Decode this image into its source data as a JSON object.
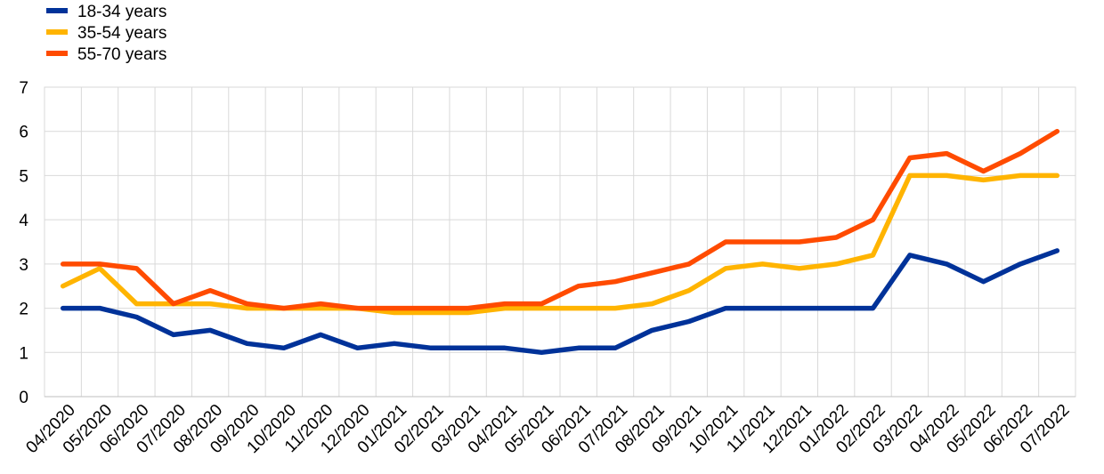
{
  "chart_data": {
    "type": "line",
    "categories": [
      "04/2020",
      "05/2020",
      "06/2020",
      "07/2020",
      "08/2020",
      "09/2020",
      "10/2020",
      "11/2020",
      "12/2020",
      "01/2021",
      "02/2021",
      "03/2021",
      "04/2021",
      "05/2021",
      "06/2021",
      "07/2021",
      "08/2021",
      "09/2021",
      "10/2021",
      "11/2021",
      "12/2021",
      "01/2022",
      "02/2022",
      "03/2022",
      "04/2022",
      "05/2022",
      "06/2022",
      "07/2022"
    ],
    "series": [
      {
        "name": "18-34 years",
        "color": "#003299",
        "values": [
          2.0,
          2.0,
          1.8,
          1.4,
          1.5,
          1.2,
          1.1,
          1.4,
          1.1,
          1.2,
          1.1,
          1.1,
          1.1,
          1.0,
          1.1,
          1.1,
          1.5,
          1.7,
          2.0,
          2.0,
          2.0,
          2.0,
          2.0,
          3.2,
          3.0,
          2.6,
          3.0,
          3.3
        ]
      },
      {
        "name": "35-54 years",
        "color": "#FFB400",
        "values": [
          2.5,
          2.9,
          2.1,
          2.1,
          2.1,
          2.0,
          2.0,
          2.0,
          2.0,
          1.9,
          1.9,
          1.9,
          2.0,
          2.0,
          2.0,
          2.0,
          2.1,
          2.4,
          2.9,
          3.0,
          2.9,
          3.0,
          3.2,
          5.0,
          5.0,
          4.9,
          5.0,
          5.0
        ]
      },
      {
        "name": "55-70 years",
        "color": "#FF4B00",
        "values": [
          3.0,
          3.0,
          2.9,
          2.1,
          2.4,
          2.1,
          2.0,
          2.1,
          2.0,
          2.0,
          2.0,
          2.0,
          2.1,
          2.1,
          2.5,
          2.6,
          2.8,
          3.0,
          3.5,
          3.5,
          3.5,
          3.6,
          4.0,
          5.4,
          5.5,
          5.1,
          5.5,
          6.0
        ]
      }
    ],
    "yticks": [
      "0",
      "1",
      "2",
      "3",
      "4",
      "5",
      "6",
      "7"
    ],
    "ylim": [
      0,
      7
    ],
    "grid": true,
    "legend_position": "top-left"
  }
}
